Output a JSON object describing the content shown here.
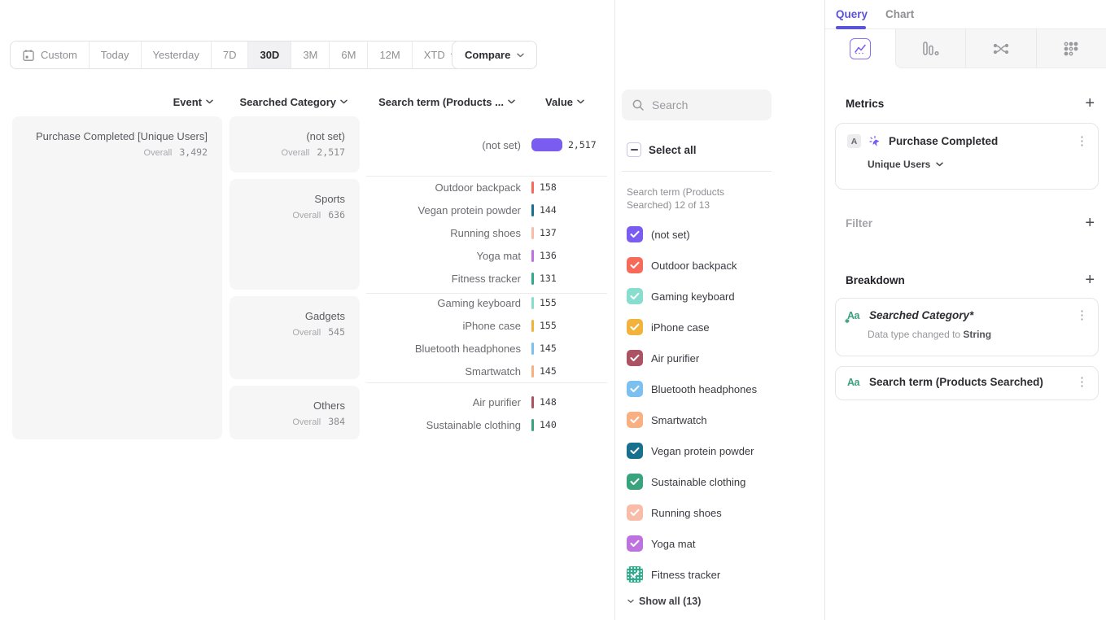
{
  "accent": "#5B54D9",
  "toolbar": {
    "date_buttons": [
      "Custom",
      "Today",
      "Yesterday",
      "7D",
      "30D",
      "3M",
      "6M",
      "12M",
      "XTD"
    ],
    "selected": "30D",
    "compare_label": "Compare",
    "chart_type": "Bar"
  },
  "table": {
    "headers": {
      "event": "Event",
      "category": "Searched Category",
      "term": "Search term (Products ...",
      "value": "Value"
    },
    "overall_label": "Overall"
  },
  "chart_data": {
    "type": "bar",
    "title": "Purchase Completed [Unique Users]",
    "overall": {
      "label": "Overall",
      "value": 3492,
      "display": "3,492"
    },
    "max_value": 2517,
    "groups": [
      {
        "category": "(not set)",
        "overall": 2517,
        "overall_display": "2,517",
        "rows": [
          {
            "term": "(not set)",
            "value": 2517,
            "display": "2,517",
            "color": "#7A5CF0"
          }
        ]
      },
      {
        "category": "Sports",
        "overall": 636,
        "overall_display": "636",
        "rows": [
          {
            "term": "Outdoor backpack",
            "value": 158,
            "display": "158",
            "color": "#F76A5A"
          },
          {
            "term": "Vegan protein powder",
            "value": 144,
            "display": "144",
            "color": "#17708E"
          },
          {
            "term": "Running shoes",
            "value": 137,
            "display": "137",
            "color": "#F8BCA8"
          },
          {
            "term": "Yoga mat",
            "value": 136,
            "display": "136",
            "color": "#BE72DF"
          },
          {
            "term": "Fitness tracker",
            "value": 131,
            "display": "131",
            "color": "#2FA98B"
          }
        ]
      },
      {
        "category": "Gadgets",
        "overall": 545,
        "overall_display": "545",
        "rows": [
          {
            "term": "Gaming keyboard",
            "value": 155,
            "display": "155",
            "color": "#88DECE"
          },
          {
            "term": "iPhone case",
            "value": 155,
            "display": "155",
            "color": "#F2B33D"
          },
          {
            "term": "Bluetooth headphones",
            "value": 145,
            "display": "145",
            "color": "#7CC0EF"
          },
          {
            "term": "Smartwatch",
            "value": 145,
            "display": "145",
            "color": "#F8B083"
          }
        ]
      },
      {
        "category": "Others",
        "overall": 384,
        "overall_display": "384",
        "rows": [
          {
            "term": "Air purifier",
            "value": 148,
            "display": "148",
            "color": "#AB5263"
          },
          {
            "term": "Sustainable clothing",
            "value": 140,
            "display": "140",
            "color": "#38A37D"
          }
        ]
      }
    ]
  },
  "legend": {
    "search_placeholder": "Search",
    "select_all_label": "Select all",
    "section_label": "Search term (Products Searched) 12 of 13",
    "items": [
      {
        "label": "(not set)",
        "color": "#7A5CF0",
        "checked": true
      },
      {
        "label": "Outdoor backpack",
        "color": "#F76A5A",
        "checked": true
      },
      {
        "label": "Gaming keyboard",
        "color": "#88DECE",
        "checked": true
      },
      {
        "label": "iPhone case",
        "color": "#F2B33D",
        "checked": true
      },
      {
        "label": "Air purifier",
        "color": "#AB5263",
        "checked": true
      },
      {
        "label": "Bluetooth headphones",
        "color": "#7CC0EF",
        "checked": true
      },
      {
        "label": "Smartwatch",
        "color": "#F8B083",
        "checked": true
      },
      {
        "label": "Vegan protein powder",
        "color": "#17708E",
        "checked": true
      },
      {
        "label": "Sustainable clothing",
        "color": "#38A37D",
        "checked": true
      },
      {
        "label": "Running shoes",
        "color": "#F8BCA8",
        "checked": true
      },
      {
        "label": "Yoga mat",
        "color": "#BE72DF",
        "checked": true
      },
      {
        "label": "Fitness tracker",
        "color": "#2FA98B",
        "checked": true,
        "pattern": true
      }
    ],
    "show_all_label": "Show all (13)"
  },
  "query_panel": {
    "tabs": {
      "query": "Query",
      "chart": "Chart"
    },
    "metrics": {
      "heading": "Metrics",
      "card": {
        "badge": "A",
        "title": "Purchase Completed",
        "measure": "Unique Users"
      }
    },
    "filter": {
      "heading": "Filter"
    },
    "breakdown": {
      "heading": "Breakdown",
      "cards": [
        {
          "icon": "Aa",
          "title": "Searched Category*",
          "note_prefix": "Data type changed to ",
          "note_value": "String"
        },
        {
          "icon": "Aa",
          "title": "Search term (Products Searched)"
        }
      ]
    }
  }
}
